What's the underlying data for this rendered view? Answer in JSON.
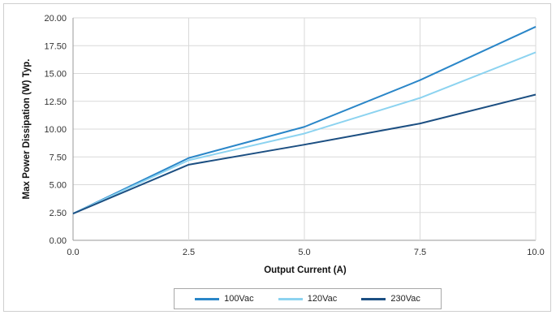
{
  "chart_data": {
    "type": "line",
    "title": "",
    "xlabel": "Output Current (A)",
    "ylabel": "Max Power Dissipation (W) Typ.",
    "xlim": [
      0,
      10
    ],
    "ylim": [
      0,
      20
    ],
    "x_ticks": [
      "0.0",
      "2.5",
      "5.0",
      "7.5",
      "10.0"
    ],
    "y_ticks": [
      "0.00",
      "2.50",
      "5.00",
      "7.50",
      "10.00",
      "12.50",
      "15.00",
      "17.50",
      "20.00"
    ],
    "grid": true,
    "legend_position": "bottom",
    "x": [
      0,
      2.5,
      5,
      7.5,
      10
    ],
    "series": [
      {
        "name": "100Vac",
        "color": "#2a86c8",
        "values": [
          2.4,
          7.4,
          10.2,
          14.4,
          19.2
        ]
      },
      {
        "name": "120Vac",
        "color": "#8cd3f0",
        "values": [
          2.4,
          7.2,
          9.6,
          12.8,
          16.9
        ]
      },
      {
        "name": "230Vac",
        "color": "#1c4f82",
        "values": [
          2.4,
          6.8,
          8.6,
          10.5,
          13.1
        ]
      }
    ]
  }
}
